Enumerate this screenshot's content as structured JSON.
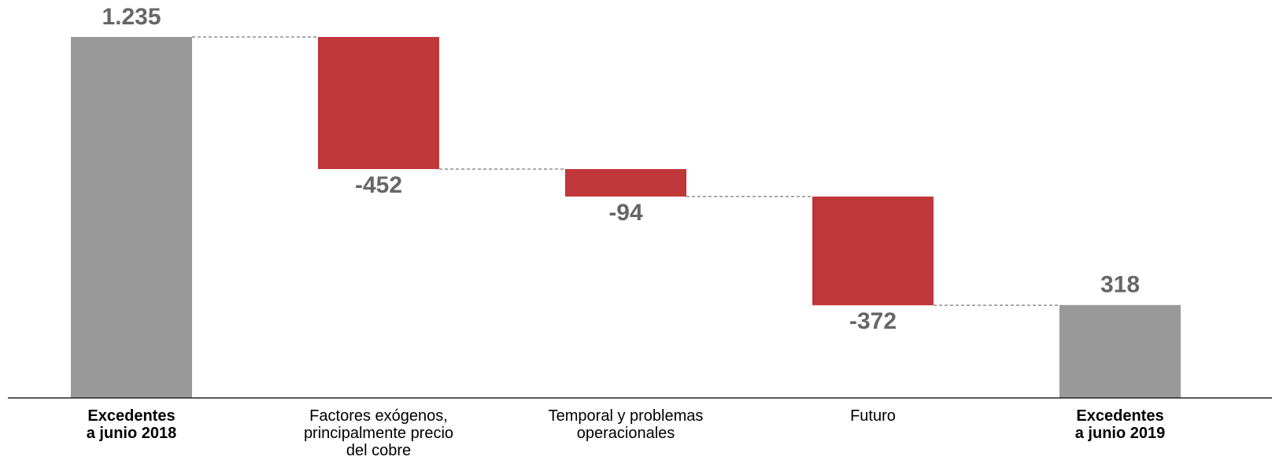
{
  "chart_data": {
    "type": "waterfall",
    "categories": [
      [
        "Excedentes",
        "a junio 2018"
      ],
      [
        "Factores exógenos,",
        "principalmente precio",
        "del cobre"
      ],
      [
        "Temporal y problemas",
        "operacionales"
      ],
      [
        "Futuro"
      ],
      [
        "Excedentes",
        "a junio 2019"
      ]
    ],
    "values": [
      1235,
      -452,
      -94,
      -372,
      318
    ],
    "value_labels": [
      "1.235",
      "-452",
      "-94",
      "-372",
      "318"
    ],
    "totals": [
      true,
      false,
      false,
      false,
      true
    ],
    "colors": [
      "#999999",
      "#c0373a",
      "#c0373a",
      "#c0373a",
      "#999999"
    ],
    "ylim": [
      0,
      1235
    ]
  }
}
